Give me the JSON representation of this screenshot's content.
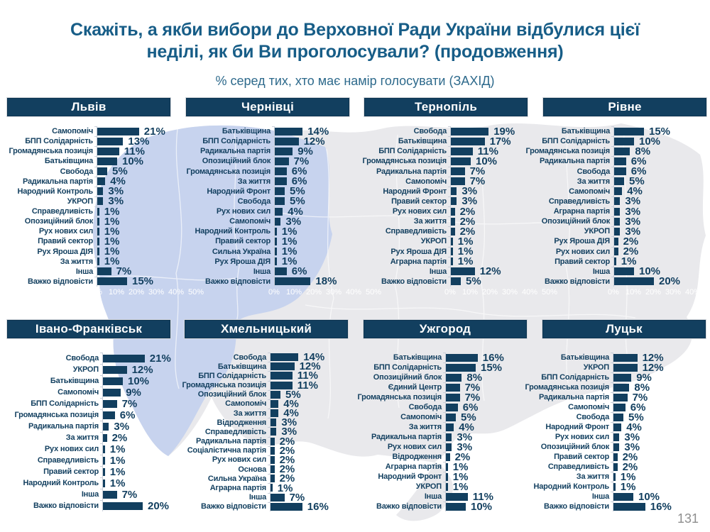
{
  "slide": {
    "title": "Скажіть, а якби вибори до Верховної Ради України відбулися цієї неділі, як би Ви проголосували? (продовження)",
    "subtitle": "% серед тих, хто має намір голосувати (ЗАХІД)",
    "page_number": "131"
  },
  "colors": {
    "bar": "#123f5f",
    "header_bg": "#123f5f",
    "header_text": "#ffffff",
    "title_text": "#175d87",
    "subtitle_text": "#2e6a8c",
    "map_land": "#e9e9ec",
    "map_west_region": "#c7d3ee",
    "map_border": "#ffffff",
    "axis_text": "#ffffff",
    "page_number_text": "#8e8e8e"
  },
  "axis_ticks": [
    "0%",
    "10%",
    "20%",
    "30%",
    "40%",
    "50%"
  ],
  "chart_data": [
    {
      "type": "bar",
      "orientation": "horizontal",
      "title": "Львів",
      "xlim": [
        0,
        50
      ],
      "show_axis": true,
      "categories": [
        "Самопоміч",
        "БПП Солідарність",
        "Громадянська позиція",
        "Батьківщина",
        "Свобода",
        "Радикальна партія",
        "Народний Контроль",
        "УКРОП",
        "Справедливість",
        "Опозиційний блок",
        "Рух нових сил",
        "Правий сектор",
        "Рух Яроша ДІЯ",
        "За життя",
        "Інша",
        "Важко відповісти"
      ],
      "values": [
        21,
        13,
        11,
        10,
        5,
        4,
        3,
        3,
        1,
        1,
        1,
        1,
        1,
        1,
        7,
        15
      ]
    },
    {
      "type": "bar",
      "orientation": "horizontal",
      "title": "Чернівці",
      "xlim": [
        0,
        50
      ],
      "show_axis": true,
      "categories": [
        "Батьківщина",
        "БПП Солідарність",
        "Радикальна партія",
        "Опозиційний блок",
        "Громадянська позиція",
        "За життя",
        "Народний Фронт",
        "Свобода",
        "Рух нових сил",
        "Самопоміч",
        "Народний Контроль",
        "Правий сектор",
        "Сильна Україна",
        "Рух Яроша ДІЯ",
        "Інша",
        "Важко відповісти"
      ],
      "values": [
        14,
        12,
        9,
        7,
        6,
        6,
        5,
        5,
        4,
        3,
        1,
        1,
        1,
        1,
        6,
        18
      ]
    },
    {
      "type": "bar",
      "orientation": "horizontal",
      "title": "Тернопіль",
      "xlim": [
        0,
        50
      ],
      "show_axis": true,
      "categories": [
        "Свобода",
        "Батьківщина",
        "БПП Солідарність",
        "Громадянська позиція",
        "Радикальна партія",
        "Самопоміч",
        "Народний Фронт",
        "Правий сектор",
        "Рух нових сил",
        "За життя",
        "Справедливість",
        "УКРОП",
        "Рух Яроша ДІЯ",
        "Аграрна партія",
        "Інша",
        "Важко відповісти"
      ],
      "values": [
        19,
        17,
        11,
        10,
        7,
        7,
        3,
        3,
        2,
        2,
        2,
        1,
        1,
        1,
        12,
        5
      ]
    },
    {
      "type": "bar",
      "orientation": "horizontal",
      "title": "Рівне",
      "xlim": [
        0,
        50
      ],
      "show_axis": true,
      "categories": [
        "Батьківщина",
        "БПП Солідарність",
        "Громадянська позиція",
        "Радикальна партія",
        "Свобода",
        "За життя",
        "Самопоміч",
        "Справедливість",
        "Аграрна партія",
        "Опозиційний блок",
        "УКРОП",
        "Рух Яроша ДІЯ",
        "Рух нових сил",
        "Правий сектор",
        "Інша",
        "Важко відповісти"
      ],
      "values": [
        15,
        10,
        8,
        6,
        6,
        5,
        4,
        3,
        3,
        3,
        3,
        2,
        2,
        1,
        10,
        20
      ]
    },
    {
      "type": "bar",
      "orientation": "horizontal",
      "title": "Івано-Франківськ",
      "xlim": [
        0,
        50
      ],
      "show_axis": false,
      "categories": [
        "Свобода",
        "УКРОП",
        "Батьківщина",
        "Самопоміч",
        "БПП Солідарність",
        "Громадянська позиція",
        "Радикальна партія",
        "За життя",
        "Рух нових сил",
        "Справедливість",
        "Правий сектор",
        "Народний Контроль",
        "Інша",
        "Важко відповісти"
      ],
      "values": [
        21,
        12,
        10,
        9,
        7,
        6,
        3,
        2,
        1,
        1,
        1,
        1,
        7,
        20
      ]
    },
    {
      "type": "bar",
      "orientation": "horizontal",
      "title": "Хмельницький",
      "xlim": [
        0,
        50
      ],
      "show_axis": false,
      "categories": [
        "Свобода",
        "Батьківщина",
        "БПП Солідарність",
        "Громадянська позиція",
        "Опозиційний блок",
        "Самопоміч",
        "За життя",
        "Відродження",
        "Справедливість",
        "Радикальна партія",
        "Соціалістична партія",
        "Рух нових сил",
        "Основа",
        "Сильна Україна",
        "Аграрна партія",
        "Інша",
        "Важко відповісти"
      ],
      "values": [
        14,
        12,
        11,
        11,
        5,
        4,
        4,
        3,
        3,
        2,
        2,
        2,
        2,
        2,
        1,
        7,
        16
      ]
    },
    {
      "type": "bar",
      "orientation": "horizontal",
      "title": "Ужгород",
      "xlim": [
        0,
        50
      ],
      "show_axis": false,
      "categories": [
        "Батьківщина",
        "БПП Солідарність",
        "Опозиційний блок",
        "Єдиний Центр",
        "Громадянська позиція",
        "Свобода",
        "Самопоміч",
        "За життя",
        "Радикальна партія",
        "Рух нових сил",
        "Відродження",
        "Аграрна партія",
        "Народний Фронт",
        "УКРОП",
        "Інша",
        "Важко відповісти"
      ],
      "values": [
        16,
        15,
        8,
        7,
        7,
        6,
        5,
        4,
        3,
        3,
        2,
        1,
        1,
        1,
        11,
        10
      ]
    },
    {
      "type": "bar",
      "orientation": "horizontal",
      "title": "Луцьк",
      "xlim": [
        0,
        50
      ],
      "show_axis": false,
      "categories": [
        "Батьківщина",
        "УКРОП",
        "БПП Солідарність",
        "Громадянська позиція",
        "Радикальна партія",
        "Самопоміч",
        "Свобода",
        "Народний Фронт",
        "Рух нових сил",
        "Опозиційний блок",
        "Правий сектор",
        "Справедливість",
        "За життя",
        "Народний Контроль",
        "Інша",
        "Важко відповісти"
      ],
      "values": [
        12,
        12,
        9,
        8,
        7,
        6,
        5,
        4,
        3,
        3,
        2,
        2,
        1,
        1,
        10,
        16
      ]
    }
  ]
}
